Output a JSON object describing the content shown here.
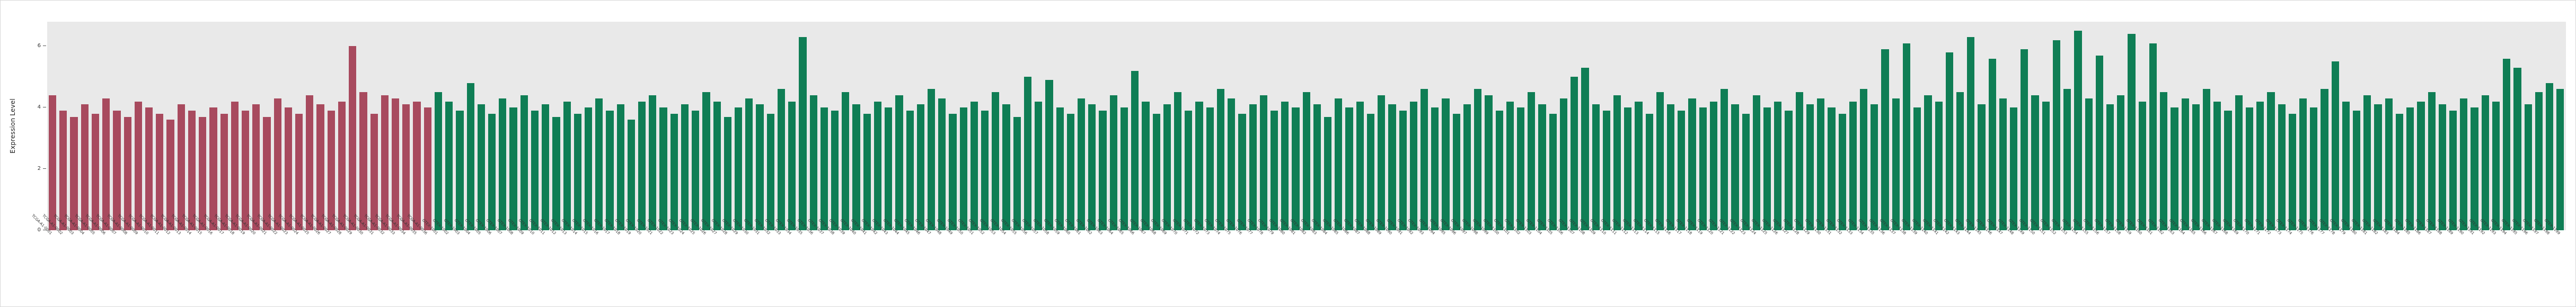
{
  "chart_data": {
    "type": "bar",
    "title": "",
    "xlabel": "",
    "ylabel": "Expression Level",
    "ylim": [
      0,
      6.8
    ],
    "yticks": [
      0,
      2,
      4,
      6
    ],
    "grid": false,
    "legend": "none",
    "panel_background": "#e9e9e9",
    "groups": [
      {
        "name": "red-group",
        "color": "#a84a5e",
        "count": 36
      },
      {
        "name": "green-group",
        "color": "#0f7e55",
        "count": 199
      }
    ],
    "labels": [
      "TCGA-A1-0001",
      "TCGA-A1-0002",
      "TCGA-A1-0003",
      "TCGA-A1-0004",
      "TCGA-A1-0005",
      "TCGA-A1-0006",
      "TCGA-A1-0007",
      "TCGA-A1-0008",
      "TCGA-A1-0009",
      "TCGA-A1-0010",
      "TCGA-A1-0011",
      "TCGA-A1-0012",
      "TCGA-A1-0013",
      "TCGA-A1-0014",
      "TCGA-A1-0015",
      "TCGA-A1-0016",
      "TCGA-A1-0017",
      "TCGA-A1-0018",
      "TCGA-A1-0019",
      "TCGA-A1-0020",
      "TCGA-A1-0021",
      "TCGA-A1-0022",
      "TCGA-A1-0023",
      "TCGA-A1-0024",
      "TCGA-A1-0025",
      "TCGA-A1-0026",
      "TCGA-A1-0027",
      "TCGA-A1-0028",
      "TCGA-A1-0029",
      "TCGA-A1-0030",
      "TCGA-A1-0031",
      "TCGA-A1-0032",
      "TCGA-A1-0033",
      "TCGA-A1-0034",
      "TCGA-A1-0035",
      "TCGA-A1-0036",
      "GTEX-1001",
      "GTEX-1002",
      "GTEX-1003",
      "GTEX-1004",
      "GTEX-1005",
      "GTEX-1006",
      "GTEX-1007",
      "GTEX-1008",
      "GTEX-1009",
      "GTEX-1010",
      "GTEX-1011",
      "GTEX-1012",
      "GTEX-1013",
      "GTEX-1014",
      "GTEX-1015",
      "GTEX-1016",
      "GTEX-1017",
      "GTEX-1018",
      "GTEX-1019",
      "GTEX-1020",
      "GTEX-1021",
      "GTEX-1022",
      "GTEX-1023",
      "GTEX-1024",
      "GTEX-1025",
      "GTEX-1026",
      "GTEX-1027",
      "GTEX-1028",
      "GTEX-1029",
      "GTEX-1030",
      "GTEX-1031",
      "GTEX-1032",
      "GTEX-1033",
      "GTEX-1034",
      "GTEX-1035",
      "GTEX-1036",
      "GTEX-1037",
      "GTEX-1038",
      "GTEX-1039",
      "GTEX-1040",
      "GTEX-1041",
      "GTEX-1042",
      "GTEX-1043",
      "GTEX-1044",
      "GTEX-1045",
      "GTEX-1046",
      "GTEX-1047",
      "GTEX-1048",
      "GTEX-1049",
      "GTEX-1050",
      "GTEX-1051",
      "GTEX-1052",
      "GTEX-1053",
      "GTEX-1054",
      "GTEX-1055",
      "GTEX-1056",
      "GTEX-1057",
      "GTEX-1058",
      "GTEX-1059",
      "GTEX-1060",
      "GTEX-1061",
      "GTEX-1062",
      "GTEX-1063",
      "GTEX-1064",
      "GTEX-1065",
      "GTEX-1066",
      "GTEX-1067",
      "GTEX-1068",
      "GTEX-1069",
      "GTEX-1070",
      "GTEX-1071",
      "GTEX-1072",
      "GTEX-1073",
      "GTEX-1074",
      "GTEX-1075",
      "GTEX-1076",
      "GTEX-1077",
      "GTEX-1078",
      "GTEX-1079",
      "GTEX-1080",
      "GTEX-1081",
      "GTEX-1082",
      "GTEX-1083",
      "GTEX-1084",
      "GTEX-1085",
      "GTEX-1086",
      "GTEX-1087",
      "GTEX-1088",
      "GTEX-1089",
      "GTEX-1090",
      "GTEX-1091",
      "GTEX-1092",
      "GTEX-1093",
      "GTEX-1094",
      "GTEX-1095",
      "GTEX-1096",
      "GTEX-1097",
      "GTEX-1098",
      "GTEX-1099",
      "GTEX-1100",
      "GTEX-1101",
      "GTEX-1102",
      "GTEX-1103",
      "GTEX-1104",
      "GTEX-1105",
      "GTEX-1106",
      "GTEX-1107",
      "GTEX-1108",
      "GTEX-1109",
      "GTEX-1110",
      "GTEX-1111",
      "GTEX-1112",
      "GTEX-1113",
      "GTEX-1114",
      "GTEX-1115",
      "GTEX-1116",
      "GTEX-1117",
      "GTEX-1118",
      "GTEX-1119",
      "GTEX-1120",
      "GTEX-1121",
      "GTEX-1122",
      "GTEX-1123",
      "GTEX-1124",
      "GTEX-1125",
      "GTEX-1126",
      "GTEX-1127",
      "GTEX-1128",
      "GTEX-1129",
      "GTEX-1130",
      "GTEX-1131",
      "GTEX-1132",
      "GTEX-1133",
      "GTEX-1134",
      "GTEX-1135",
      "GTEX-1136",
      "GTEX-1137",
      "GTEX-1138",
      "GTEX-1139",
      "GTEX-1140",
      "GTEX-1141",
      "GTEX-1142",
      "GTEX-1143",
      "GTEX-1144",
      "GTEX-1145",
      "GTEX-1146",
      "GTEX-1147",
      "GTEX-1148",
      "GTEX-1149",
      "GTEX-1150",
      "GTEX-1151",
      "GTEX-1152",
      "GTEX-1153",
      "GTEX-1154",
      "GTEX-1155",
      "GTEX-1156",
      "GTEX-1157",
      "GTEX-1158",
      "GTEX-1159",
      "GTEX-1160",
      "GTEX-1161",
      "GTEX-1162",
      "GTEX-1163",
      "GTEX-1164",
      "GTEX-1165",
      "GTEX-1166",
      "GTEX-1167",
      "GTEX-1168",
      "GTEX-1169",
      "GTEX-1170",
      "GTEX-1171",
      "GTEX-1172",
      "GTEX-1173",
      "GTEX-1174",
      "GTEX-1175",
      "GTEX-1176",
      "GTEX-1177",
      "GTEX-1178",
      "GTEX-1179",
      "GTEX-1180",
      "GTEX-1181",
      "GTEX-1182",
      "GTEX-1183",
      "GTEX-1184",
      "GTEX-1185",
      "GTEX-1186",
      "GTEX-1187",
      "GTEX-1188",
      "GTEX-1189",
      "GTEX-1190",
      "GTEX-1191",
      "GTEX-1192",
      "GTEX-1193",
      "GTEX-1194",
      "GTEX-1195",
      "GTEX-1196",
      "GTEX-1197",
      "GTEX-1198",
      "GTEX-1199"
    ],
    "values": [
      4.4,
      3.9,
      3.7,
      4.1,
      3.8,
      4.3,
      3.9,
      3.7,
      4.2,
      4.0,
      3.8,
      3.6,
      4.1,
      3.9,
      3.7,
      4.0,
      3.8,
      4.2,
      3.9,
      4.1,
      3.7,
      4.3,
      4.0,
      3.8,
      4.4,
      4.1,
      3.9,
      4.2,
      6.0,
      4.5,
      3.8,
      4.4,
      4.3,
      4.1,
      4.2,
      4.0,
      4.5,
      4.2,
      3.9,
      4.8,
      4.1,
      3.8,
      4.3,
      4.0,
      4.4,
      3.9,
      4.1,
      3.7,
      4.2,
      3.8,
      4.0,
      4.3,
      3.9,
      4.1,
      3.6,
      4.2,
      4.4,
      4.0,
      3.8,
      4.1,
      3.9,
      4.5,
      4.2,
      3.7,
      4.0,
      4.3,
      4.1,
      3.8,
      4.6,
      4.2,
      6.3,
      4.4,
      4.0,
      3.9,
      4.5,
      4.1,
      3.8,
      4.2,
      4.0,
      4.4,
      3.9,
      4.1,
      4.6,
      4.3,
      3.8,
      4.0,
      4.2,
      3.9,
      4.5,
      4.1,
      3.7,
      5.0,
      4.2,
      4.9,
      4.0,
      3.8,
      4.3,
      4.1,
      3.9,
      4.4,
      4.0,
      5.2,
      4.2,
      3.8,
      4.1,
      4.5,
      3.9,
      4.2,
      4.0,
      4.6,
      4.3,
      3.8,
      4.1,
      4.4,
      3.9,
      4.2,
      4.0,
      4.5,
      4.1,
      3.7,
      4.3,
      4.0,
      4.2,
      3.8,
      4.4,
      4.1,
      3.9,
      4.2,
      4.6,
      4.0,
      4.3,
      3.8,
      4.1,
      4.6,
      4.4,
      3.9,
      4.2,
      4.0,
      4.5,
      4.1,
      3.8,
      4.3,
      5.0,
      5.3,
      4.1,
      3.9,
      4.4,
      4.0,
      4.2,
      3.8,
      4.5,
      4.1,
      3.9,
      4.3,
      4.0,
      4.2,
      4.6,
      4.1,
      3.8,
      4.4,
      4.0,
      4.2,
      3.9,
      4.5,
      4.1,
      4.3,
      4.0,
      3.8,
      4.2,
      4.6,
      4.1,
      5.9,
      4.3,
      6.1,
      4.0,
      4.4,
      4.2,
      5.8,
      4.5,
      6.3,
      4.1,
      5.6,
      4.3,
      4.0,
      5.9,
      4.4,
      4.2,
      6.2,
      4.6,
      6.5,
      4.3,
      5.7,
      4.1,
      4.4,
      6.4,
      4.2,
      6.1,
      4.5,
      4.0,
      4.3,
      4.1,
      4.6,
      4.2,
      3.9,
      4.4,
      4.0,
      4.2,
      4.5,
      4.1,
      3.8,
      4.3,
      4.0,
      4.6,
      5.5,
      4.2,
      3.9,
      4.4,
      4.1,
      4.3,
      3.8,
      4.0,
      4.2,
      4.5,
      4.1,
      3.9,
      4.3,
      4.0,
      4.4,
      4.2,
      5.6,
      5.3,
      4.1,
      4.5,
      4.8,
      4.6
    ]
  }
}
